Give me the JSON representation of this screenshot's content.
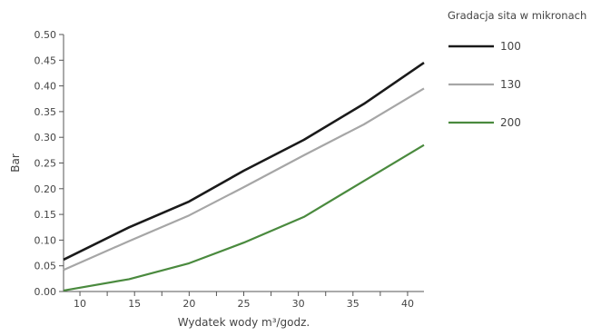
{
  "chart_data": {
    "type": "line",
    "xlabel": "Wydatek wody m³/godz.",
    "ylabel": "Bar",
    "xlim": [
      8.5,
      41.5
    ],
    "ylim": [
      0,
      0.5
    ],
    "x_ticks": [
      10,
      15,
      20,
      25,
      30,
      35,
      40
    ],
    "y_ticks": [
      "0.00",
      "0.05",
      "0.10",
      "0.15",
      "0.20",
      "0.25",
      "0.30",
      "0.35",
      "0.40",
      "0.45",
      "0.50"
    ],
    "legend_title": "Gradacja sita w mikronach",
    "legend_position": "right",
    "grid": false,
    "series": [
      {
        "name": "100",
        "color": "#1a1a1a",
        "points": [
          [
            8.5,
            0.062
          ],
          [
            14.5,
            0.125
          ],
          [
            20,
            0.175
          ],
          [
            25,
            0.235
          ],
          [
            30.5,
            0.295
          ],
          [
            36,
            0.365
          ],
          [
            41.5,
            0.445
          ]
        ]
      },
      {
        "name": "130",
        "color": "#a6a6a6",
        "points": [
          [
            8.5,
            0.042
          ],
          [
            14.5,
            0.098
          ],
          [
            20,
            0.148
          ],
          [
            25,
            0.203
          ],
          [
            30.5,
            0.265
          ],
          [
            36,
            0.325
          ],
          [
            41.5,
            0.395
          ]
        ]
      },
      {
        "name": "200",
        "color": "#4a8a3e",
        "points": [
          [
            8.5,
            0.002
          ],
          [
            14.5,
            0.024
          ],
          [
            20,
            0.055
          ],
          [
            25,
            0.095
          ],
          [
            30.5,
            0.145
          ],
          [
            36,
            0.215
          ],
          [
            41.5,
            0.285
          ]
        ]
      }
    ]
  }
}
